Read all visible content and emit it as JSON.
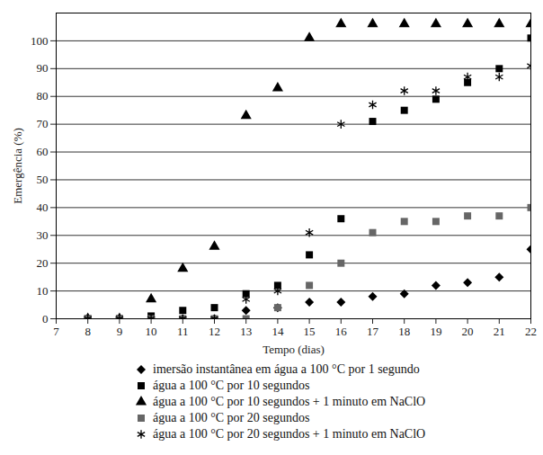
{
  "chart_data": {
    "type": "scatter",
    "x_label": "Tempo (dias)",
    "y_label": "Emergência (%)",
    "x": [
      8,
      9,
      10,
      11,
      12,
      13,
      14,
      15,
      16,
      17,
      18,
      19,
      20,
      21,
      22
    ],
    "series": [
      {
        "name": "imersão instantânea em água a 100 °C por 1 segundo",
        "color": "#000000",
        "marker": "diamond2",
        "values": [
          0,
          0,
          0,
          0,
          0,
          3,
          4,
          6,
          6,
          8,
          9,
          12,
          13,
          15,
          25
        ]
      },
      {
        "name": "água a 100 °C por 10 segundos",
        "color": "#000000",
        "marker": "square",
        "values": [
          0,
          0,
          1,
          3,
          4,
          9,
          12,
          23,
          36,
          71,
          75,
          79,
          85,
          90,
          101
        ]
      },
      {
        "name": "água a 100 °C por 10 segundos + 1 minuto em NaClO",
        "color": "#000000",
        "marker": "triangle",
        "values": [
          0,
          0,
          7,
          18,
          26,
          73,
          83,
          101,
          106,
          106,
          106,
          106,
          106,
          106,
          106
        ]
      },
      {
        "name": "água a 100 °C por 20 segundos",
        "color": "#666666",
        "marker": "square",
        "values": [
          0,
          0,
          0,
          0,
          0,
          0,
          4,
          12,
          20,
          31,
          35,
          35,
          37,
          37,
          40
        ]
      },
      {
        "name": "água a 100 °C por 20 segundos + 1 minuto em NaClO",
        "color": "#000000",
        "marker": "asterisk",
        "values": [
          0,
          0,
          0,
          0,
          0,
          7,
          10,
          31,
          70,
          77,
          82,
          82,
          87,
          87,
          91
        ]
      }
    ],
    "xlim": [
      7,
      22
    ],
    "xticks": [
      7,
      8,
      9,
      10,
      11,
      12,
      13,
      14,
      15,
      16,
      17,
      18,
      19,
      20,
      21,
      22
    ],
    "ylim": [
      0,
      110
    ],
    "yticks": [
      0,
      10,
      20,
      30,
      40,
      50,
      60,
      70,
      80,
      90,
      100
    ],
    "grid": true,
    "legend": "bottom"
  }
}
